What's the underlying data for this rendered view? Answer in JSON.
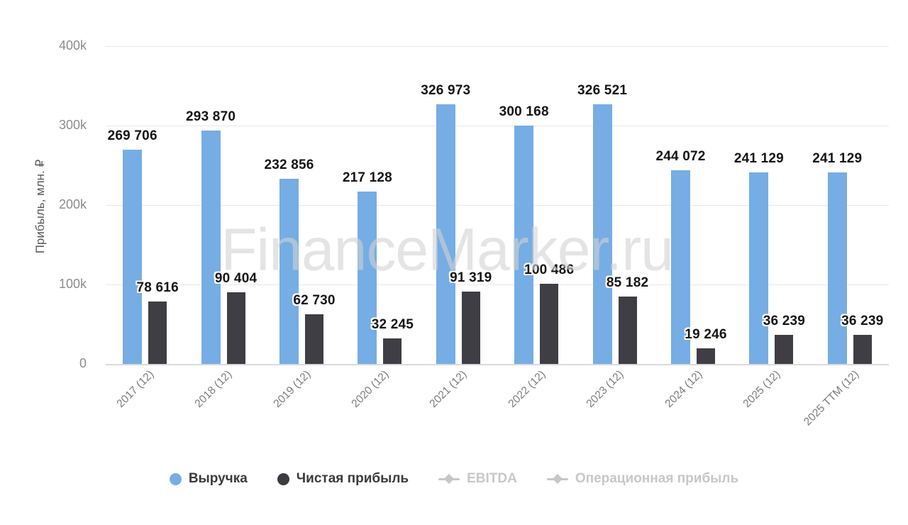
{
  "watermark_text": "FinanceMarker.ru",
  "chart_data": {
    "type": "bar",
    "title": "",
    "xlabel": "",
    "ylabel": "Прибыль, млн. ₽",
    "ylim": [
      0,
      400000
    ],
    "grid": true,
    "legend_position": "bottom",
    "yticks": [
      {
        "label": "400k",
        "value": 400000
      },
      {
        "label": "300k",
        "value": 300000
      },
      {
        "label": "200k",
        "value": 200000
      },
      {
        "label": "100k",
        "value": 100000
      },
      {
        "label": "0",
        "value": 0
      }
    ],
    "categories": [
      "2017 (12)",
      "2018 (12)",
      "2019 (12)",
      "2020 (12)",
      "2021 (12)",
      "2022 (12)",
      "2023 (12)",
      "2024 (12)",
      "2025 (12)",
      "2025 TTM (12)"
    ],
    "series": [
      {
        "name": "Выручка",
        "color": "#76ade4",
        "marker": "circle",
        "enabled": true,
        "values": [
          269706,
          293870,
          232856,
          217128,
          326973,
          300168,
          326521,
          244072,
          241129,
          241129
        ],
        "labels": [
          "269 706",
          "293 870",
          "232 856",
          "217 128",
          "326 973",
          "300 168",
          "326 521",
          "244 072",
          "241 129",
          "241 129"
        ]
      },
      {
        "name": "Чистая прибыль",
        "color": "#3e3e44",
        "marker": "circle",
        "enabled": true,
        "values": [
          78616,
          90404,
          62730,
          32245,
          91319,
          100486,
          85182,
          19246,
          36239,
          36239
        ],
        "labels": [
          "78 616",
          "90 404",
          "62 730",
          "32 245",
          "91 319",
          "100 486",
          "85 182",
          "19 246",
          "36 239",
          "36 239"
        ]
      },
      {
        "name": "EBITDA",
        "color": "#c7c7c7",
        "marker": "line-diamond",
        "enabled": false,
        "values": []
      },
      {
        "name": "Операционная прибыль",
        "color": "#c7c7c7",
        "marker": "line-diamond",
        "enabled": false,
        "values": []
      }
    ]
  }
}
